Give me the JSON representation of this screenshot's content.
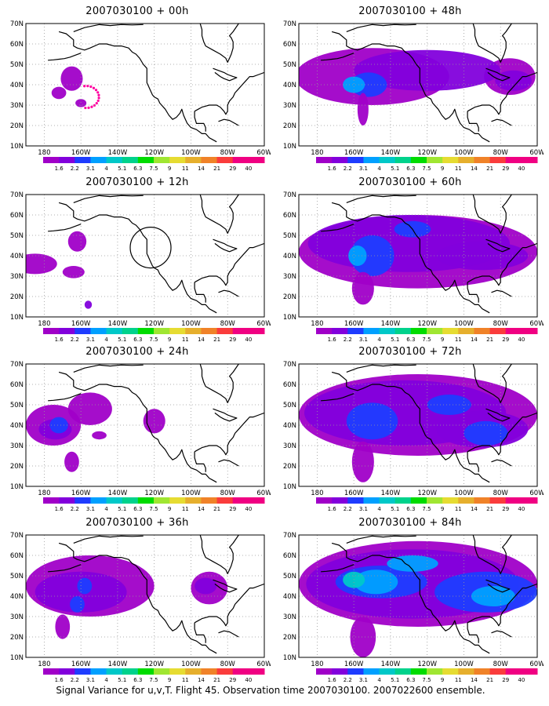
{
  "panels": [
    {
      "title": "2007030100 + 00h"
    },
    {
      "title": "2007030100 + 48h"
    },
    {
      "title": "2007030100 + 12h"
    },
    {
      "title": "2007030100 + 60h"
    },
    {
      "title": "2007030100 + 24h"
    },
    {
      "title": "2007030100 + 72h"
    },
    {
      "title": "2007030100 + 36h"
    },
    {
      "title": "2007030100 + 84h"
    }
  ],
  "axes": {
    "lon_labels": [
      "180",
      "160W",
      "140W",
      "120W",
      "100W",
      "80W",
      "60W"
    ],
    "lat_labels": [
      "70N",
      "60N",
      "50N",
      "40N",
      "30N",
      "20N",
      "10N"
    ]
  },
  "colorbar": {
    "labels": [
      "1.6",
      "2.2",
      "3.1",
      "4",
      "5.1",
      "6.3",
      "7.5",
      "9",
      "11",
      "14",
      "21",
      "29",
      "40"
    ],
    "colors": [
      "#a000c8",
      "#8200dc",
      "#1e3cff",
      "#00a0ff",
      "#00c8c8",
      "#00d28c",
      "#00dc00",
      "#a0e632",
      "#e6dc32",
      "#e6af2d",
      "#f08228",
      "#fa3c3c",
      "#f00082"
    ]
  },
  "caption": "Signal Variance for u,v,T. Flight 45. Observation time 2007030100. 2007022600 ensemble."
}
